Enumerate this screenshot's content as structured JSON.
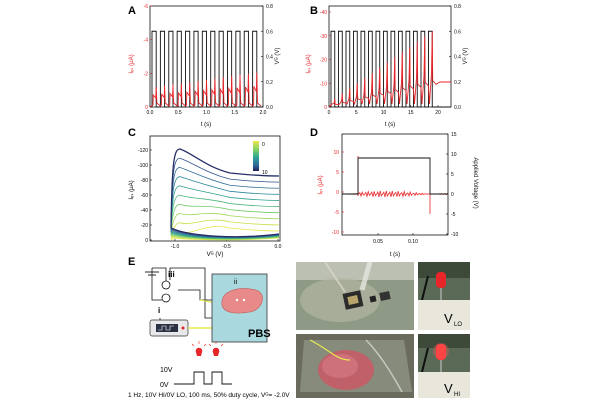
{
  "panels": {
    "A": {
      "letter": "A",
      "ylabel_left": "Iₑₛ (μA)",
      "ylabel_right": "Vᴳ (V)",
      "xlabel": "t (s)",
      "left_ticks": [
        "0",
        "-2",
        "-4",
        "-6"
      ],
      "right_ticks": [
        "0.0",
        "0.2",
        "0.4",
        "0.6",
        "0.8"
      ],
      "x_ticks": [
        "0.0",
        "0.5",
        "1.0",
        "1.5",
        "2.0"
      ]
    },
    "B": {
      "letter": "B",
      "ylabel_left": "Iₑₛ (μA)",
      "ylabel_right": "Vᴳ (V)",
      "xlabel": "t (s)",
      "left_ticks": [
        "0",
        "-10",
        "-20",
        "-30",
        "-40"
      ],
      "right_ticks": [
        "0.0",
        "0.2",
        "0.4",
        "0.6",
        "0.8"
      ],
      "x_ticks": [
        "0",
        "5",
        "10",
        "15",
        "20"
      ]
    },
    "C": {
      "letter": "C",
      "ylabel": "Iₑₛ (μA)",
      "xlabel": "Vᴳ (V)",
      "y_ticks": [
        "0",
        "-20",
        "-40",
        "-60",
        "-80",
        "-100",
        "-120"
      ],
      "x_ticks": [
        "-1.0",
        "-0.5",
        "0.0"
      ],
      "colorbar_ticks": [
        "0",
        "10"
      ]
    },
    "D": {
      "letter": "D",
      "ylabel_left": "Iₑₛ (μA)",
      "ylabel_right": "Applied Voltage (V)",
      "xlabel": "t (s)",
      "left_ticks": [
        "10",
        "5",
        "0",
        "-5",
        "-10"
      ],
      "right_ticks": [
        "15",
        "10",
        "5",
        "0",
        "-5",
        "-10"
      ],
      "x_ticks": [
        "0.05",
        "0.10"
      ]
    },
    "E": {
      "letter": "E",
      "roman_iii": "iii",
      "roman_ii": "ii",
      "roman_i": "i",
      "pbs": "PBS",
      "v10": "10V",
      "v0": "0V",
      "caption": "1 Hz, 10V HI/0V LO, 100 ms, 50% duty cycle, Vᴳ= -2.0V",
      "v_lo": "V",
      "v_lo_sub": "LO",
      "v_hi": "V",
      "v_hi_sub": "HI"
    }
  },
  "colors": {
    "current": "#e8262a",
    "voltage": "#111111",
    "pbs_box": "#a9d9de",
    "tissue": "#e98a8a",
    "wire": "#e7ea52",
    "led": "#e8262a"
  },
  "chart_data": [
    {
      "type": "line",
      "panel": "A",
      "series": [
        {
          "axis": "left",
          "description": "drain current",
          "x_range": [
            0,
            2
          ],
          "y_range": [
            0,
            -6.5
          ]
        },
        {
          "axis": "right",
          "description": "gate voltage pulses",
          "x_range": [
            0,
            2
          ],
          "levels": [
            0.0,
            0.6
          ],
          "pulse_count": 13
        }
      ],
      "xlim": [
        0,
        2
      ],
      "ylim_left": [
        0,
        -6.5
      ],
      "ylim_right": [
        0,
        0.8
      ]
    },
    {
      "type": "line",
      "panel": "B",
      "series": [
        {
          "axis": "left",
          "description": "drain current",
          "x_range": [
            0,
            22
          ],
          "y_range": [
            0,
            -40
          ]
        },
        {
          "axis": "right",
          "description": "gate voltage pulses",
          "x_range": [
            0,
            20
          ],
          "levels": [
            0.0,
            0.6
          ],
          "pulse_count": 14
        }
      ],
      "xlim": [
        0,
        22
      ],
      "ylim_left": [
        0,
        -42
      ],
      "ylim_right": [
        0,
        0.8
      ]
    },
    {
      "type": "line",
      "panel": "C",
      "series_count": 10,
      "xlim": [
        -1.25,
        0.0
      ],
      "ylim": [
        0,
        -130
      ],
      "colorbar_range": [
        0,
        10
      ]
    },
    {
      "type": "line",
      "panel": "D",
      "series": [
        {
          "axis": "left",
          "description": "drain current",
          "baseline": 0
        },
        {
          "axis": "right",
          "description": "applied voltage",
          "levels": [
            0,
            10
          ],
          "pulse_x": [
            0.025,
            0.125
          ]
        }
      ],
      "xlim": [
        0,
        0.15
      ],
      "ylim_left": [
        -10,
        10
      ],
      "ylim_right": [
        -10,
        15
      ]
    }
  ]
}
